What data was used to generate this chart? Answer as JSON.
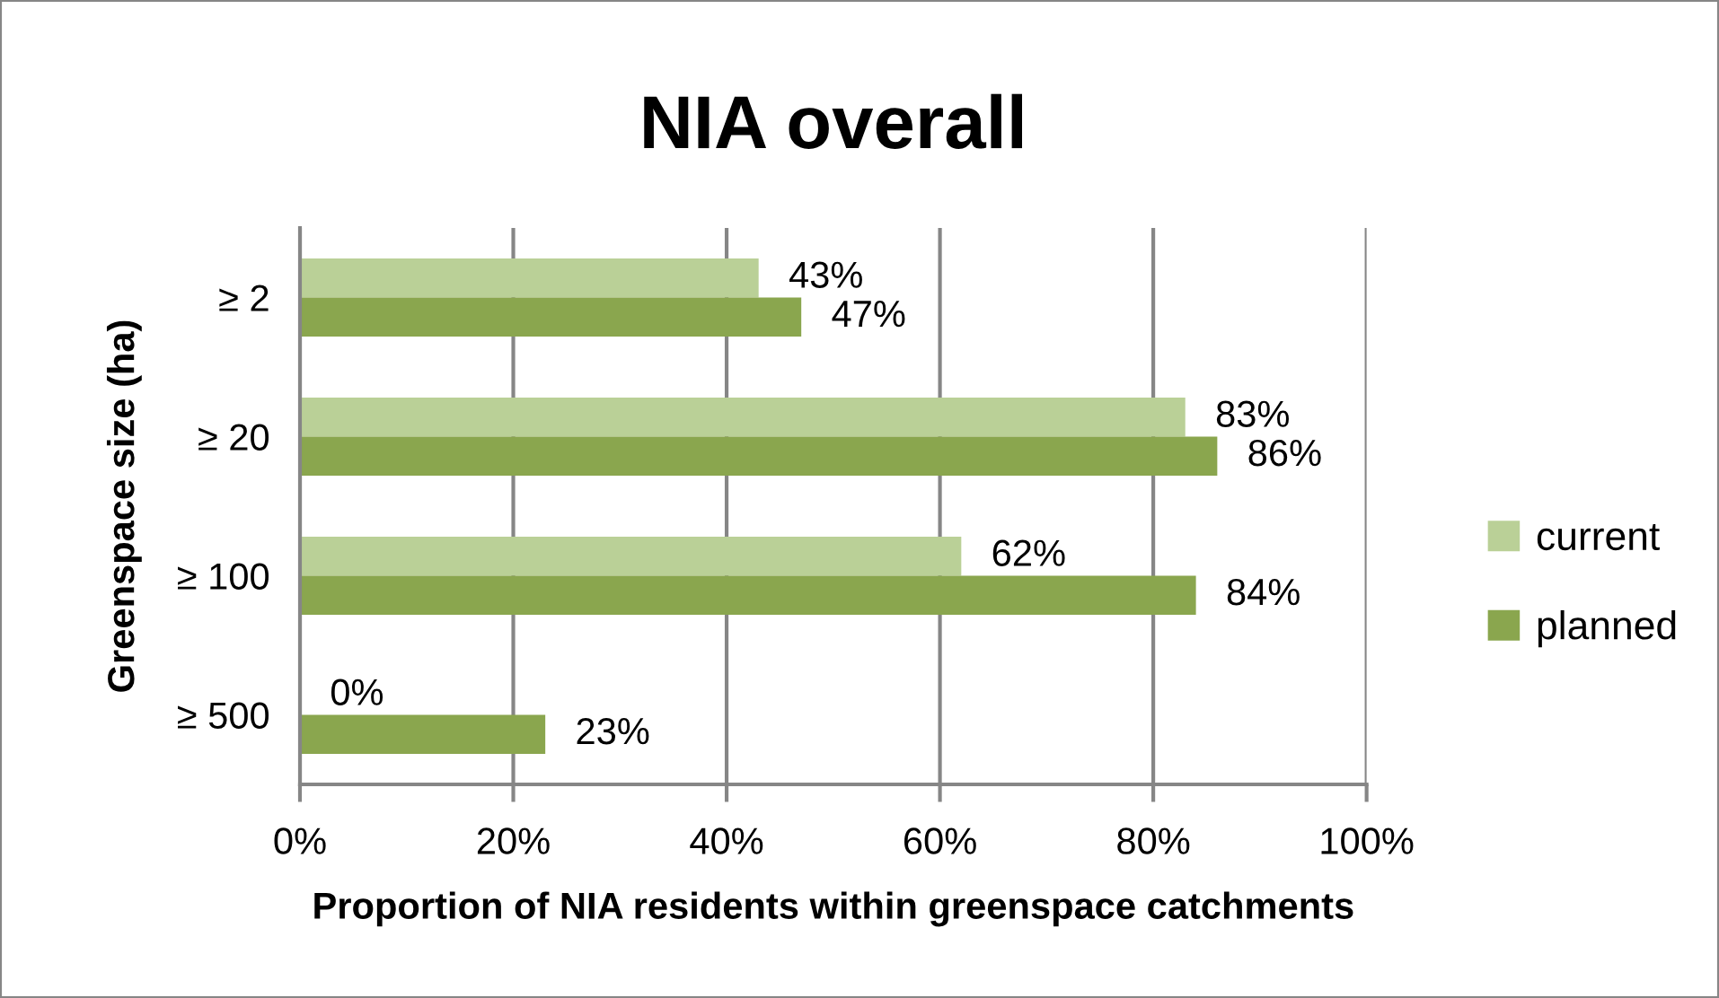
{
  "chart_data": {
    "type": "bar",
    "orientation": "horizontal",
    "title": "NIA overall",
    "xlabel": "Proportion of NIA residents within greenspace catchments",
    "ylabel": "Greenspace size (ha)",
    "categories": [
      "≥ 2",
      "≥ 20",
      "≥ 100",
      "≥ 500"
    ],
    "series": [
      {
        "name": "current",
        "color": "#bad097",
        "values": [
          43,
          83,
          62,
          0
        ],
        "value_labels": [
          "43%",
          "83%",
          "62%",
          "0%"
        ]
      },
      {
        "name": "planned",
        "color": "#8aa64e",
        "values": [
          47,
          86,
          84,
          23
        ],
        "value_labels": [
          "47%",
          "86%",
          "84%",
          "23%"
        ]
      }
    ],
    "xlim": [
      0,
      100
    ],
    "xticks": [
      {
        "value": 0,
        "label": "0%"
      },
      {
        "value": 20,
        "label": "20%"
      },
      {
        "value": 40,
        "label": "40%"
      },
      {
        "value": 60,
        "label": "60%"
      },
      {
        "value": 80,
        "label": "80%"
      },
      {
        "value": 100,
        "label": "100%"
      }
    ],
    "grid": "x",
    "legend": "right"
  }
}
